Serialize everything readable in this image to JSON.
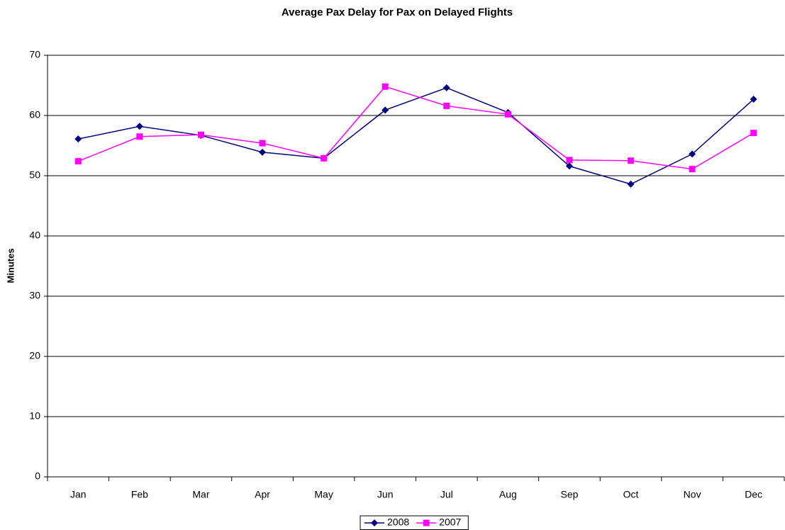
{
  "chart_data": {
    "type": "line",
    "title": "Average Pax Delay for Pax on Delayed Flights",
    "y_label": "Minutes",
    "categories": [
      "Jan",
      "Feb",
      "Mar",
      "Apr",
      "May",
      "Jun",
      "Jul",
      "Aug",
      "Sep",
      "Oct",
      "Nov",
      "Dec"
    ],
    "series": [
      {
        "name": "2008",
        "color": "#000080",
        "marker": "diamond",
        "values": [
          56.1,
          58.2,
          56.7,
          53.9,
          52.9,
          60.9,
          64.6,
          60.5,
          51.6,
          48.6,
          53.6,
          62.7
        ]
      },
      {
        "name": "2007",
        "color": "#ff00ff",
        "marker": "square",
        "values": [
          52.4,
          56.5,
          56.8,
          55.4,
          52.9,
          64.8,
          61.6,
          60.2,
          52.6,
          52.5,
          51.1,
          57.1
        ]
      }
    ],
    "ylim": [
      0,
      70
    ],
    "yticks": [
      0,
      10,
      20,
      30,
      40,
      50,
      60,
      70
    ],
    "grid": true,
    "legend": "bottom"
  }
}
